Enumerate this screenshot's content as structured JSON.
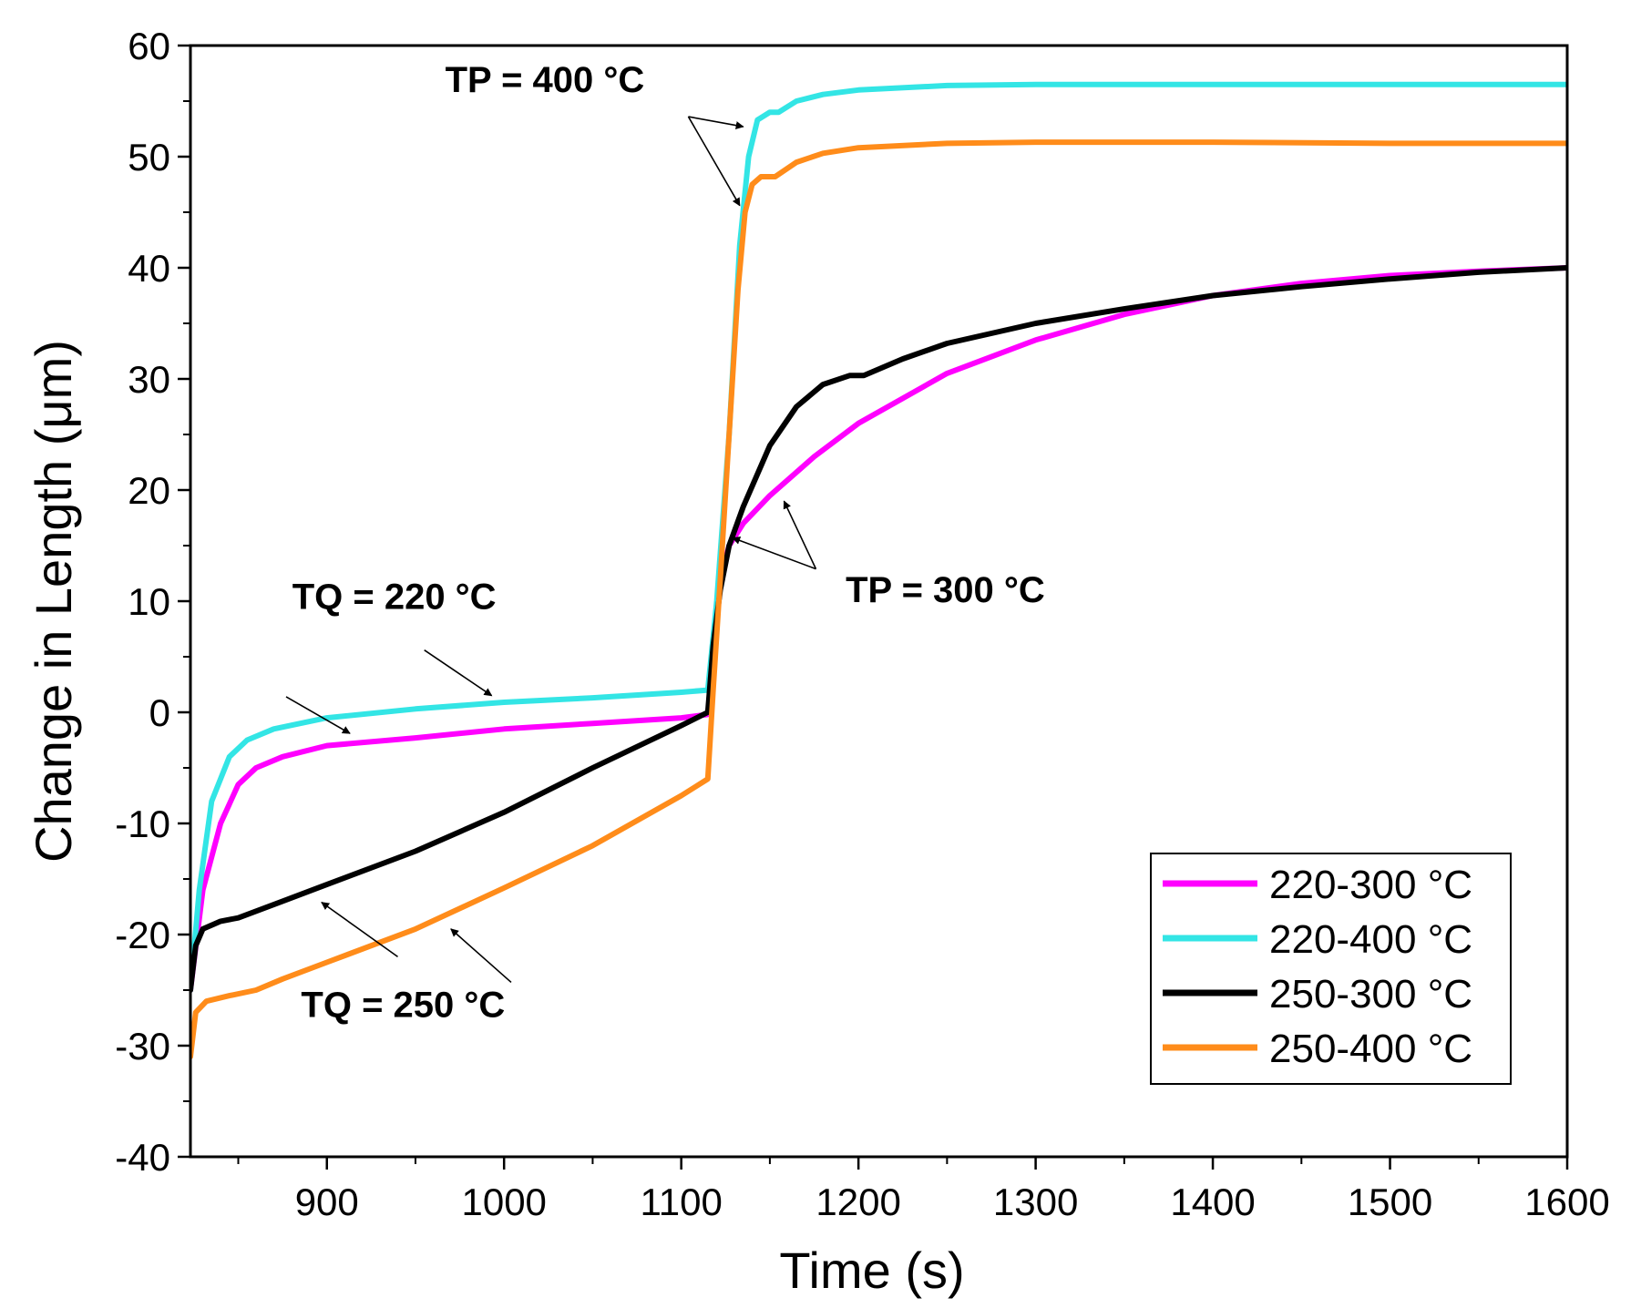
{
  "chart_data": {
    "type": "line",
    "xlabel": "Time (s)",
    "ylabel": "Change in Length (μm)",
    "xlim": [
      823,
      1600
    ],
    "ylim": [
      -40,
      60
    ],
    "xticks": [
      900,
      1000,
      1100,
      1200,
      1300,
      1400,
      1500,
      1600
    ],
    "yticks": [
      -40,
      -30,
      -20,
      -10,
      0,
      10,
      20,
      30,
      40,
      50,
      60
    ],
    "legend_position": "bottom-right",
    "series": [
      {
        "name": "220-300 °C",
        "color": "#ff00ff",
        "points": [
          [
            823,
            -25
          ],
          [
            830,
            -16
          ],
          [
            840,
            -10
          ],
          [
            850,
            -6.5
          ],
          [
            860,
            -5
          ],
          [
            875,
            -4
          ],
          [
            900,
            -3
          ],
          [
            950,
            -2.3
          ],
          [
            1000,
            -1.5
          ],
          [
            1050,
            -1
          ],
          [
            1100,
            -0.5
          ],
          [
            1115,
            -0.2
          ],
          [
            1118,
            5
          ],
          [
            1122,
            12
          ],
          [
            1127,
            15
          ],
          [
            1135,
            17
          ],
          [
            1150,
            19.5
          ],
          [
            1175,
            23
          ],
          [
            1200,
            26
          ],
          [
            1250,
            30.5
          ],
          [
            1300,
            33.5
          ],
          [
            1350,
            35.8
          ],
          [
            1400,
            37.5
          ],
          [
            1450,
            38.6
          ],
          [
            1500,
            39.3
          ],
          [
            1550,
            39.7
          ],
          [
            1600,
            40
          ]
        ]
      },
      {
        "name": "220-400 °C",
        "color": "#33e5e5",
        "points": [
          [
            823,
            -25
          ],
          [
            828,
            -16
          ],
          [
            835,
            -8
          ],
          [
            845,
            -4
          ],
          [
            855,
            -2.5
          ],
          [
            870,
            -1.5
          ],
          [
            900,
            -0.5
          ],
          [
            950,
            0.3
          ],
          [
            1000,
            0.9
          ],
          [
            1050,
            1.3
          ],
          [
            1100,
            1.8
          ],
          [
            1115,
            2
          ],
          [
            1120,
            10
          ],
          [
            1127,
            25
          ],
          [
            1133,
            42
          ],
          [
            1138,
            50
          ],
          [
            1143,
            53.3
          ],
          [
            1150,
            54
          ],
          [
            1155,
            54
          ],
          [
            1165,
            55
          ],
          [
            1180,
            55.6
          ],
          [
            1200,
            56
          ],
          [
            1250,
            56.4
          ],
          [
            1300,
            56.5
          ],
          [
            1400,
            56.5
          ],
          [
            1500,
            56.5
          ],
          [
            1600,
            56.5
          ]
        ]
      },
      {
        "name": "250-300 °C",
        "color": "#000000",
        "points": [
          [
            823,
            -25
          ],
          [
            826,
            -21
          ],
          [
            830,
            -19.5
          ],
          [
            840,
            -18.8
          ],
          [
            850,
            -18.5
          ],
          [
            875,
            -17
          ],
          [
            900,
            -15.5
          ],
          [
            950,
            -12.5
          ],
          [
            1000,
            -9
          ],
          [
            1050,
            -5
          ],
          [
            1100,
            -1.2
          ],
          [
            1115,
            0
          ],
          [
            1118,
            6
          ],
          [
            1122,
            11
          ],
          [
            1127,
            15
          ],
          [
            1135,
            18.5
          ],
          [
            1150,
            24
          ],
          [
            1165,
            27.5
          ],
          [
            1180,
            29.5
          ],
          [
            1195,
            30.3
          ],
          [
            1203,
            30.3
          ],
          [
            1225,
            31.8
          ],
          [
            1250,
            33.2
          ],
          [
            1300,
            35
          ],
          [
            1350,
            36.3
          ],
          [
            1400,
            37.5
          ],
          [
            1450,
            38.3
          ],
          [
            1500,
            39
          ],
          [
            1550,
            39.6
          ],
          [
            1600,
            40
          ]
        ]
      },
      {
        "name": "250-400 °C",
        "color": "#ff8c1a",
        "points": [
          [
            823,
            -31
          ],
          [
            826,
            -27
          ],
          [
            832,
            -26
          ],
          [
            845,
            -25.5
          ],
          [
            860,
            -25
          ],
          [
            875,
            -24
          ],
          [
            900,
            -22.5
          ],
          [
            950,
            -19.5
          ],
          [
            1000,
            -15.8
          ],
          [
            1050,
            -12
          ],
          [
            1100,
            -7.5
          ],
          [
            1115,
            -6
          ],
          [
            1118,
            2
          ],
          [
            1122,
            12
          ],
          [
            1127,
            25
          ],
          [
            1132,
            38
          ],
          [
            1136,
            45
          ],
          [
            1140,
            47.5
          ],
          [
            1145,
            48.2
          ],
          [
            1153,
            48.2
          ],
          [
            1165,
            49.5
          ],
          [
            1180,
            50.3
          ],
          [
            1200,
            50.8
          ],
          [
            1250,
            51.2
          ],
          [
            1300,
            51.3
          ],
          [
            1400,
            51.3
          ],
          [
            1500,
            51.2
          ],
          [
            1600,
            51.2
          ]
        ]
      }
    ],
    "annotations": [
      {
        "text": "TP = 400 °C",
        "label_at": [
          1023,
          55.8
        ],
        "arrows": [
          {
            "from": [
              1104,
              53.6
            ],
            "to": [
              1135,
              52.7
            ]
          },
          {
            "from": [
              1104,
              53.6
            ],
            "to": [
              1133,
              45.6
            ]
          }
        ]
      },
      {
        "text": "TP = 300 °C",
        "label_at": [
          1249,
          9.9
        ],
        "arrows": [
          {
            "from": [
              1176,
              12.9
            ],
            "to": [
              1129,
              15.7
            ]
          },
          {
            "from": [
              1176,
              12.9
            ],
            "to": [
              1158,
              19
            ]
          }
        ]
      },
      {
        "text": "TQ = 220 °C",
        "label_at": [
          938,
          9.3
        ],
        "arrows": [
          {
            "from": [
              955,
              5.6
            ],
            "to": [
              993,
              1.5
            ]
          },
          {
            "from": [
              877,
              1.4
            ],
            "to": [
              913,
              -1.9
            ]
          }
        ]
      },
      {
        "text": "TQ = 250 °C",
        "label_at": [
          943,
          -27.4
        ],
        "arrows": [
          {
            "from": [
              940,
              -22
            ],
            "to": [
              897,
              -17.1
            ]
          },
          {
            "from": [
              1004,
              -24.3
            ],
            "to": [
              970,
              -19.5
            ]
          }
        ]
      }
    ]
  }
}
